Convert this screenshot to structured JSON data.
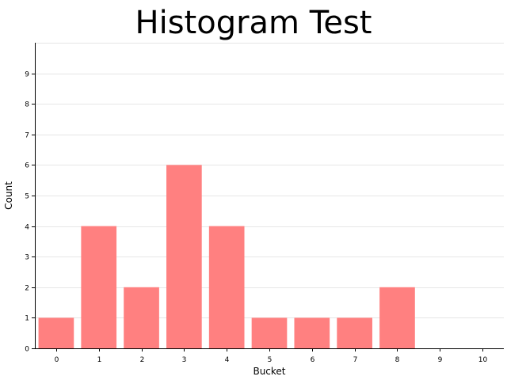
{
  "chart_data": {
    "type": "bar",
    "title": "Histogram Test",
    "xlabel": "Bucket",
    "ylabel": "Count",
    "categories": [
      "0",
      "1",
      "2",
      "3",
      "4",
      "5",
      "6",
      "7",
      "8",
      "9",
      "10"
    ],
    "values": [
      1,
      4,
      2,
      6,
      4,
      1,
      1,
      1,
      2,
      0,
      0
    ],
    "ylim": [
      0,
      10
    ],
    "yticks": [
      0,
      1,
      2,
      3,
      4,
      5,
      6,
      7,
      8,
      9
    ],
    "grid": true,
    "colors": {
      "bar": "#ff8080",
      "grid": "#e6e6e6",
      "axis": "#000000"
    }
  }
}
